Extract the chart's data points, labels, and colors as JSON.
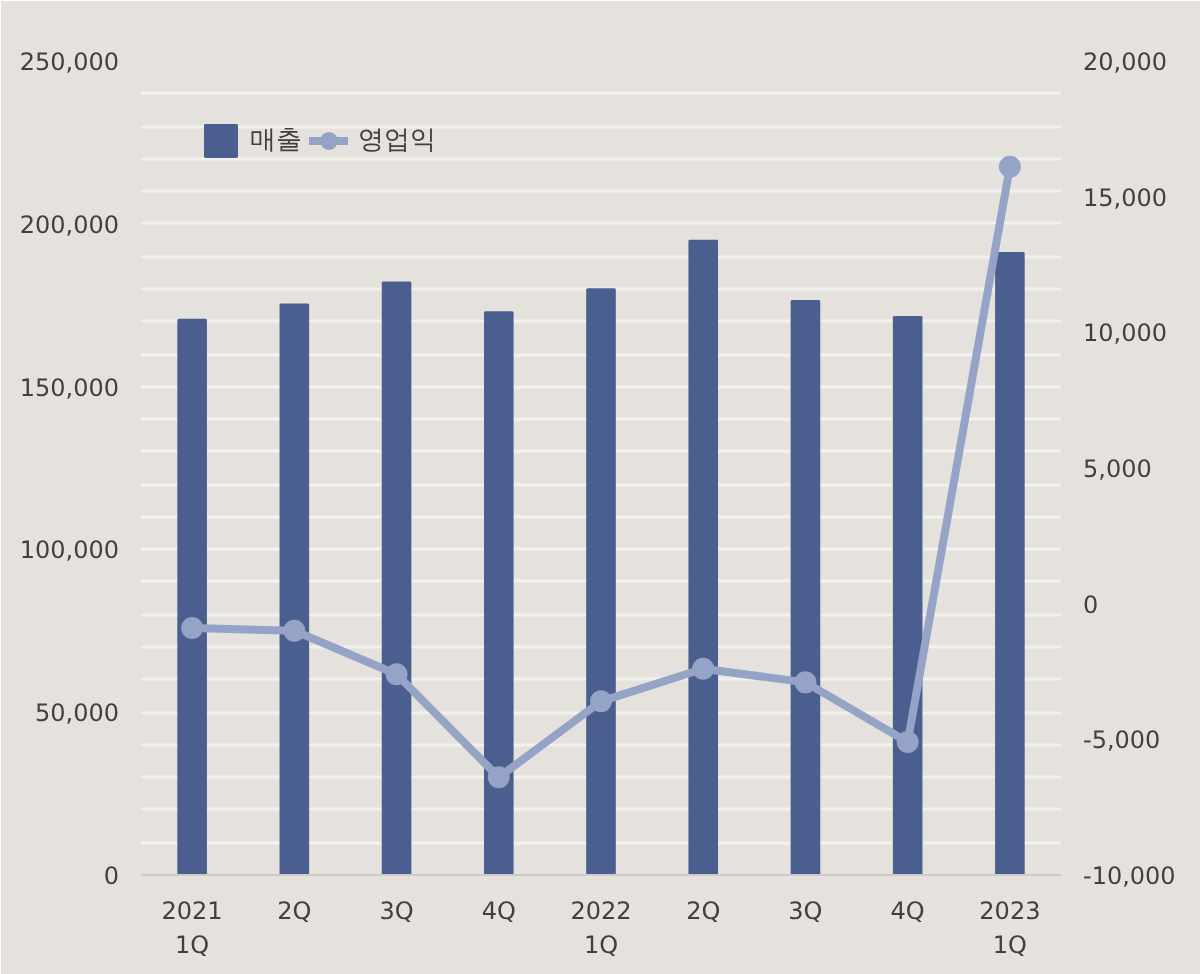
{
  "chart_data": {
    "type": "bar",
    "categories": [
      "2021\n1Q",
      "2Q",
      "3Q",
      "4Q",
      "2022\n1Q",
      "2Q",
      "3Q",
      "4Q",
      "2023\n1Q"
    ],
    "series": [
      {
        "name": "매출",
        "color": "#4a5f8f",
        "values": [
          170500,
          175200,
          182000,
          172800,
          179900,
          194800,
          176300,
          171400,
          191000
        ]
      },
      {
        "name": "영업익",
        "type": "line",
        "axis": "y2",
        "color": "#94a3c6",
        "marker": "circle",
        "values": [
          -900,
          -1000,
          -2600,
          -6400,
          -3600,
          -2400,
          -2900,
          -5100,
          16100
        ]
      }
    ],
    "ylim": [
      0,
      250000
    ],
    "yticks": [
      {
        "value": 0,
        "label": "0"
      },
      {
        "value": 10000,
        "label": null
      },
      {
        "value": 20000,
        "label": null
      },
      {
        "value": 30000,
        "label": null
      },
      {
        "value": 40000,
        "label": null
      },
      {
        "value": 50000,
        "label": "50,000"
      },
      {
        "value": 60000,
        "label": null
      },
      {
        "value": 70000,
        "label": null
      },
      {
        "value": 80000,
        "label": null
      },
      {
        "value": 90000,
        "label": null
      },
      {
        "value": 100000,
        "label": "100,000"
      },
      {
        "value": 110000,
        "label": null
      },
      {
        "value": 120000,
        "label": null
      },
      {
        "value": 130000,
        "label": null
      },
      {
        "value": 140000,
        "label": null
      },
      {
        "value": 150000,
        "label": "150,000"
      },
      {
        "value": 160000,
        "label": null
      },
      {
        "value": 170000,
        "label": null
      },
      {
        "value": 180000,
        "label": null
      },
      {
        "value": 190000,
        "label": null
      },
      {
        "value": 200000,
        "label": "200,000"
      },
      {
        "value": 210000,
        "label": null
      },
      {
        "value": 220000,
        "label": null
      },
      {
        "value": 230000,
        "label": null
      },
      {
        "value": 240000,
        "label": null
      },
      {
        "value": 250000,
        "label": "250,000"
      }
    ],
    "y2lim": [
      -10000,
      20000
    ],
    "y2ticks": [
      {
        "value": -10000,
        "label": "-10,000"
      },
      {
        "value": -5000,
        "label": "-5,000"
      },
      {
        "value": 0,
        "label": "0"
      },
      {
        "value": 5000,
        "label": "5,000"
      },
      {
        "value": 10000,
        "label": "10,000"
      },
      {
        "value": 15000,
        "label": "15,000"
      },
      {
        "value": 20000,
        "label": "20,000"
      }
    ],
    "grid": "y",
    "legend": "top left"
  }
}
